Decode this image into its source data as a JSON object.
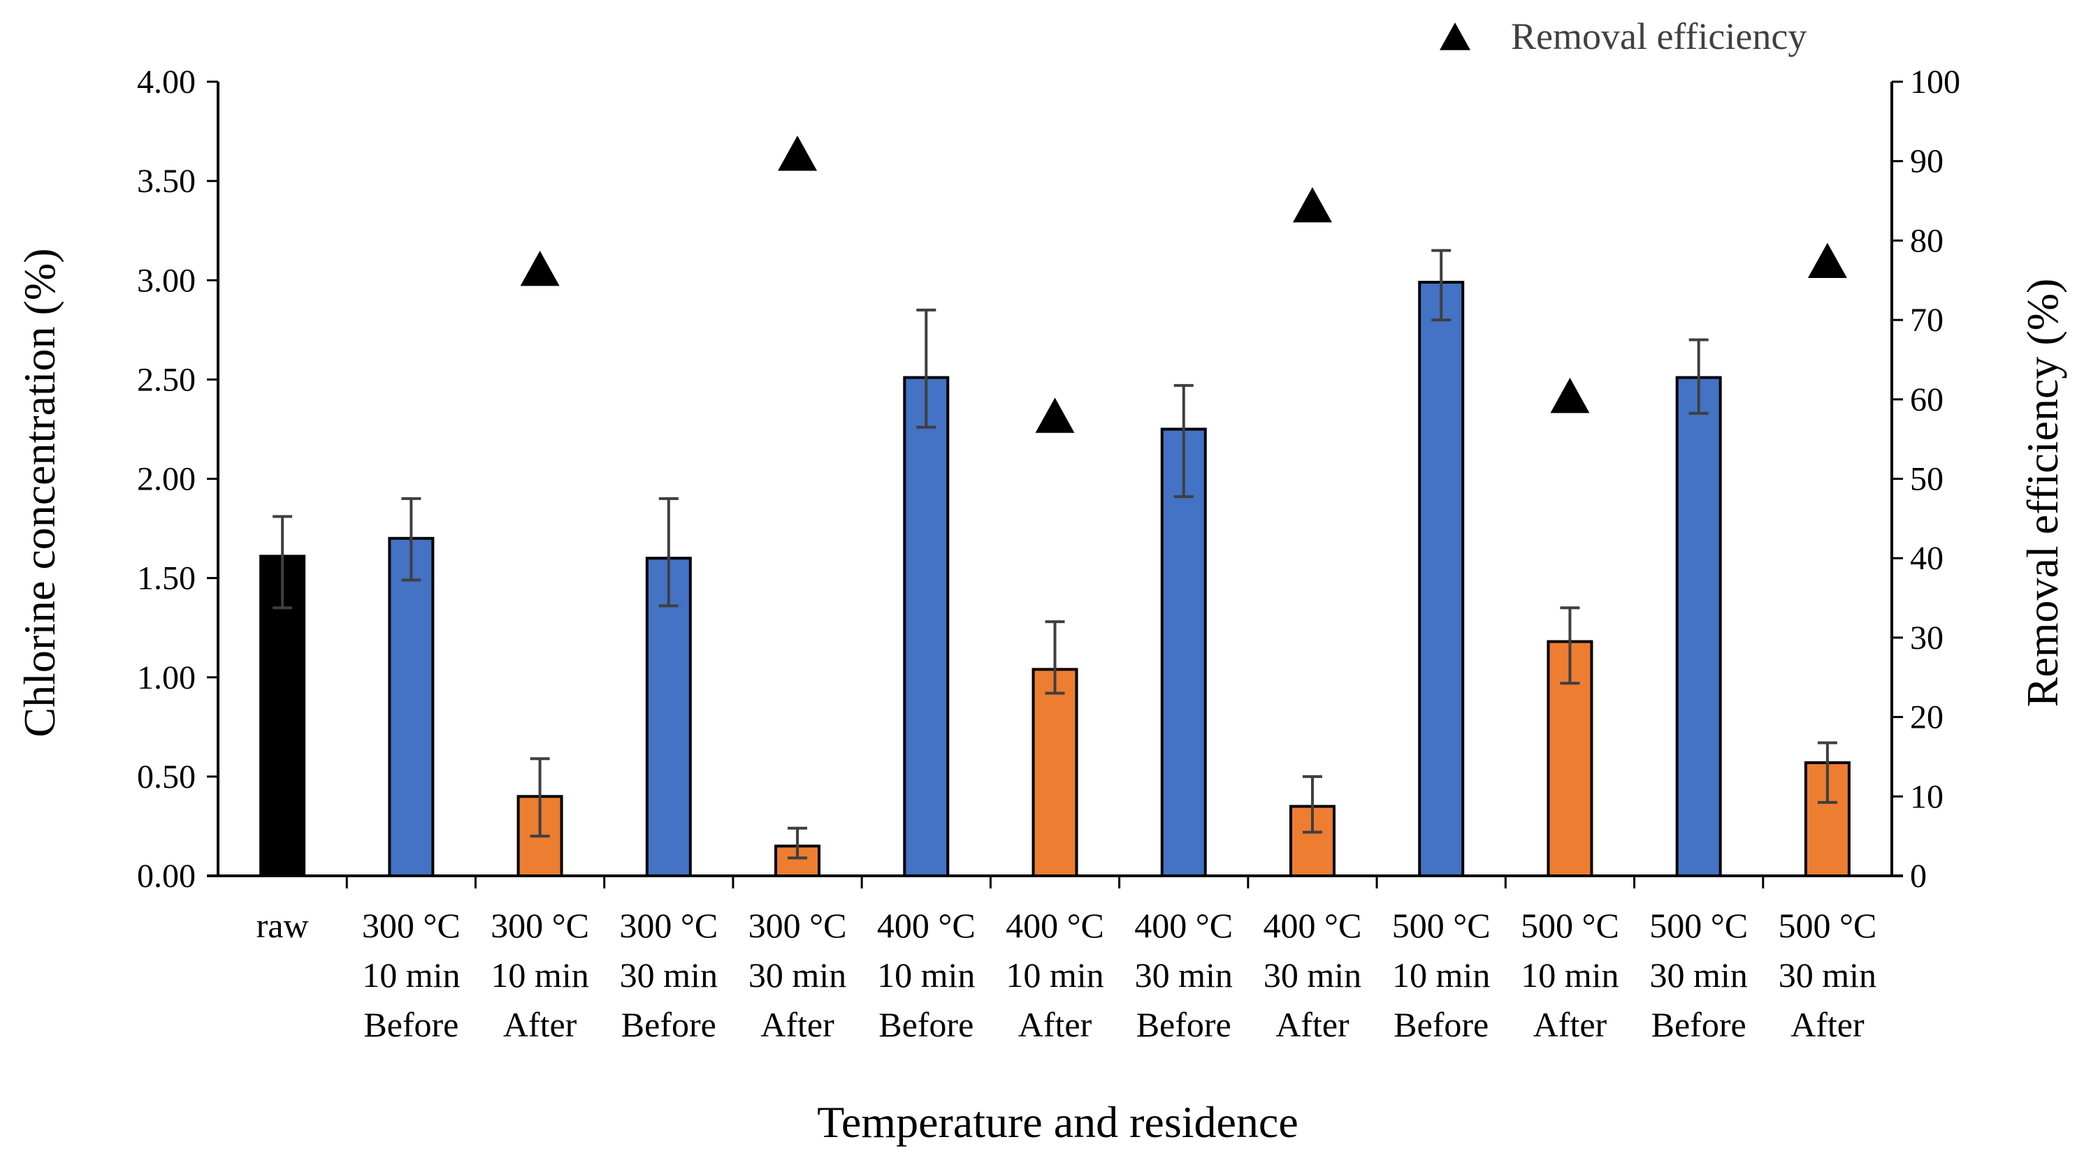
{
  "chart_data": {
    "type": "bar",
    "title": "",
    "xlabel": "Temperature and residence",
    "ylabel": "Chlorine concentration (%)",
    "y2label": "Removal efficiency (%)",
    "ylim": [
      0,
      4
    ],
    "y2lim": [
      0,
      100
    ],
    "yticks": [
      "0.00",
      "0.50",
      "1.00",
      "1.50",
      "2.00",
      "2.50",
      "3.00",
      "3.50",
      "4.00"
    ],
    "y2ticks": [
      "0",
      "10",
      "20",
      "30",
      "40",
      "50",
      "60",
      "70",
      "80",
      "90",
      "100"
    ],
    "categories": [
      [
        "raw"
      ],
      [
        "300 °C",
        "10 min",
        "Before"
      ],
      [
        "300 °C",
        "10 min",
        "After"
      ],
      [
        "300 °C",
        "30 min",
        "Before"
      ],
      [
        "300 °C",
        "30 min",
        "After"
      ],
      [
        "400 °C",
        "10 min",
        "Before"
      ],
      [
        "400 °C",
        "10 min",
        "After"
      ],
      [
        "400 °C",
        "30 min",
        "Before"
      ],
      [
        "400 °C",
        "30 min",
        "After"
      ],
      [
        "500 °C",
        "10 min",
        "Before"
      ],
      [
        "500 °C",
        "10 min",
        "After"
      ],
      [
        "500 °C",
        "30 min",
        "Before"
      ],
      [
        "500 °C",
        "30 min",
        "After"
      ]
    ],
    "bar_groups": [
      "raw",
      "Before",
      "After",
      "Before",
      "After",
      "Before",
      "After",
      "Before",
      "After",
      "Before",
      "After",
      "Before",
      "After"
    ],
    "values": [
      1.61,
      1.7,
      0.4,
      1.6,
      0.15,
      2.51,
      1.04,
      2.25,
      0.35,
      2.99,
      1.18,
      2.51,
      0.57
    ],
    "errors": [
      [
        1.35,
        1.81
      ],
      [
        1.49,
        1.9
      ],
      [
        0.2,
        0.59
      ],
      [
        1.36,
        1.9
      ],
      [
        0.09,
        0.24
      ],
      [
        2.26,
        2.85
      ],
      [
        0.92,
        1.28
      ],
      [
        1.91,
        2.47
      ],
      [
        0.22,
        0.5
      ],
      [
        2.8,
        3.15
      ],
      [
        0.97,
        1.35
      ],
      [
        2.33,
        2.7
      ],
      [
        0.37,
        0.67
      ]
    ],
    "removal_efficiency": [
      {
        "category_index": 2,
        "value": 76.5
      },
      {
        "category_index": 4,
        "value": 91.0
      },
      {
        "category_index": 6,
        "value": 58.0
      },
      {
        "category_index": 8,
        "value": 84.5
      },
      {
        "category_index": 10,
        "value": 60.5
      },
      {
        "category_index": 12,
        "value": 77.5
      }
    ],
    "colors": {
      "raw": "#000000",
      "Before": "#4472c4",
      "After": "#ed7d31",
      "marker": "#000000",
      "error": "#3f3f3f"
    },
    "legend": {
      "entries": [
        "Removal efficiency"
      ],
      "position": "top-right"
    }
  }
}
